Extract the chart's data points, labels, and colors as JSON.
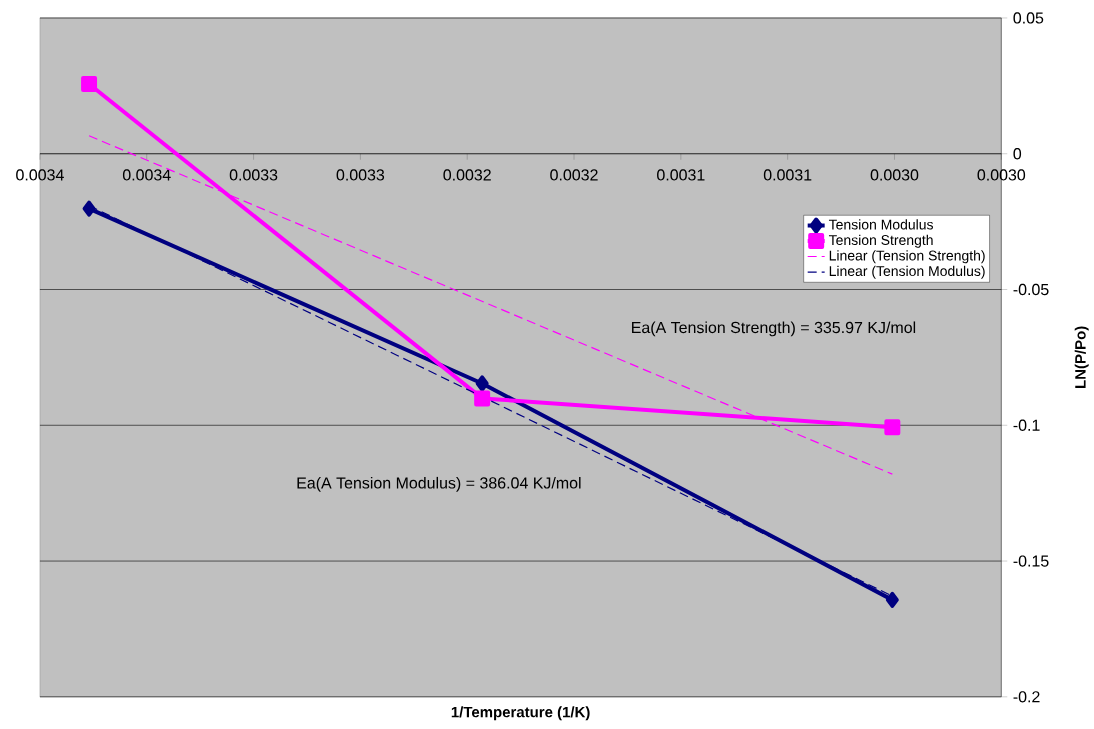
{
  "chart_data": {
    "type": "line",
    "xlabel": "1/Temperature (1/K)",
    "ylabel": "LN(P/Po)",
    "xlim": [
      0.00345,
      0.003
    ],
    "xticks": [
      {
        "value": 0.00345,
        "label": "0.0034"
      },
      {
        "value": 0.0034,
        "label": "0.0034"
      },
      {
        "value": 0.00335,
        "label": "0.0033"
      },
      {
        "value": 0.0033,
        "label": "0.0033"
      },
      {
        "value": 0.00325,
        "label": "0.0032"
      },
      {
        "value": 0.0032,
        "label": "0.0032"
      },
      {
        "value": 0.00315,
        "label": "0.0031"
      },
      {
        "value": 0.0031,
        "label": "0.0031"
      },
      {
        "value": 0.00305,
        "label": "0.0030"
      },
      {
        "value": 0.003,
        "label": "0.0030"
      }
    ],
    "ylim": [
      -0.2,
      0.05
    ],
    "yticks": [
      -0.2,
      -0.15,
      -0.1,
      -0.05,
      0,
      0.05
    ],
    "grid": "y",
    "legend": "right",
    "series": [
      {
        "name": "Tension Modulus",
        "color": "#000080",
        "marker": "diamond",
        "line_style": "solid",
        "x": [
          0.003427,
          0.003243,
          0.003051
        ],
        "values": [
          -0.0202,
          -0.0846,
          -0.1643
        ]
      },
      {
        "name": "Tension Strength",
        "color": "#ff00ff",
        "marker": "square",
        "line_style": "solid",
        "x": [
          0.003427,
          0.003243,
          0.003051
        ],
        "values": [
          0.0257,
          -0.0901,
          -0.1007
        ]
      },
      {
        "name": "Linear (Tension Strength)",
        "color": "#ff00ff",
        "marker": "none",
        "line_style": "dashed",
        "x": [
          0.003427,
          0.003051
        ],
        "values": [
          0.0066,
          -0.118
        ]
      },
      {
        "name": "Linear (Tension Modulus)",
        "color": "#000080",
        "marker": "none",
        "line_style": "dashed",
        "x": [
          0.003427,
          0.003051
        ],
        "values": [
          -0.0191,
          -0.1629
        ]
      }
    ],
    "annotations": [
      "Ea(A Tension Strength) = 335.97 KJ/mol",
      "Ea(A Tension Modulus) = 386.04 KJ/mol"
    ]
  }
}
